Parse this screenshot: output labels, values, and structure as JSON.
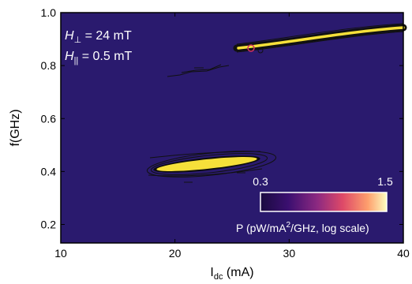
{
  "chart_data": {
    "type": "heatmap",
    "xlabel": "I",
    "xlabel_sub": "dc",
    "xlabel_unit": " (mA)",
    "ylabel": "f(GHz)",
    "xlim": [
      10,
      40
    ],
    "ylim": [
      0.13,
      1.0
    ],
    "x_ticks": [
      10,
      20,
      30,
      40
    ],
    "y_ticks": [
      1.0,
      0.8,
      0.6,
      0.4,
      0.2
    ],
    "y_tick_labels": [
      "1.0",
      "0.8",
      "0.6",
      "0.4",
      "0.2"
    ],
    "background_color": "#2a1a6e",
    "annotations": {
      "h_perp": {
        "symbol": "H",
        "sub": "⊥",
        "value": " = 24 mT"
      },
      "h_par": {
        "symbol": "H",
        "sub": "||",
        "value": " = 0.5 mT"
      }
    },
    "colorbar": {
      "min_label": "0.3",
      "max_label": "1.5",
      "label_prefix": "P (pW/mA",
      "label_sup": "2",
      "label_suffix": "/GHz, log scale)",
      "colors": [
        "#1a0b40",
        "#3b0f70",
        "#8c2981",
        "#de4968",
        "#fe9f6d",
        "#fcfdbf"
      ]
    },
    "features": [
      {
        "name": "lower mode",
        "x_range": [
          17.5,
          27
        ],
        "f_range": [
          0.36,
          0.41
        ],
        "peak": "high"
      },
      {
        "name": "upper mode",
        "x_range": [
          26,
          40
        ],
        "f_range": [
          0.85,
          0.93
        ],
        "peak": "high"
      },
      {
        "name": "faint mode",
        "x_range": [
          19,
          26
        ],
        "f_range": [
          0.75,
          0.81
        ],
        "peak": "low"
      }
    ]
  }
}
